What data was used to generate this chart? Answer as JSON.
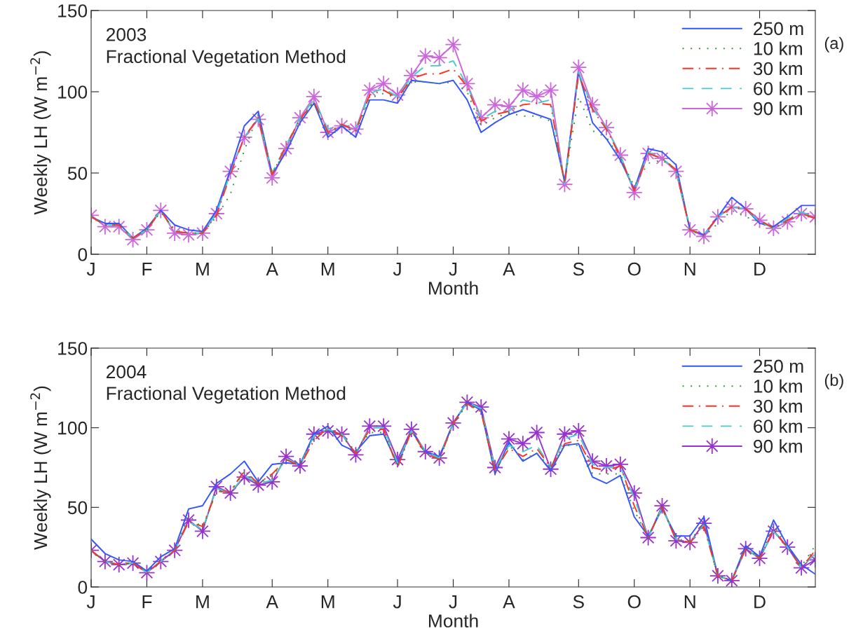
{
  "chart_data": [
    {
      "type": "line",
      "xlabel": "Month",
      "ylabel": "Weekly LH (W m$^{−2}$)",
      "annotations": [
        "2003",
        "Fractional Vegetation Method",
        "(a)"
      ],
      "categories": [
        "J",
        null,
        null,
        null,
        "F",
        null,
        null,
        null,
        "M",
        null,
        null,
        null,
        null,
        "A",
        null,
        null,
        null,
        "M",
        null,
        null,
        null,
        null,
        "J",
        null,
        null,
        null,
        "J",
        null,
        null,
        null,
        "A",
        null,
        null,
        null,
        null,
        "S",
        null,
        null,
        null,
        "O",
        null,
        null,
        null,
        "N",
        null,
        null,
        null,
        null,
        "D",
        null,
        null,
        null,
        null
      ],
      "ylim": [
        0,
        150
      ],
      "yticks": [
        0,
        50,
        100,
        150
      ],
      "grid": false,
      "legend": "top right",
      "series": [
        {
          "name": "250 m",
          "color": "#3355ff",
          "line_style": "solid",
          "marker": "none",
          "values": [
            23,
            19,
            19,
            10,
            16,
            27,
            18,
            15,
            14,
            27,
            52,
            79,
            88,
            49,
            63,
            81,
            93,
            72,
            79,
            72,
            95,
            95,
            93,
            107,
            106,
            105,
            107,
            95,
            75,
            81,
            86,
            89,
            86,
            83,
            45,
            112,
            81,
            71,
            58,
            40,
            65,
            63,
            55,
            15,
            12,
            23,
            35,
            28,
            19,
            17,
            23,
            30,
            30
          ]
        },
        {
          "name": "10 km",
          "color": "#339933",
          "line_style": "dotted",
          "marker": "none",
          "values": [
            23,
            18,
            18,
            10,
            15,
            26,
            15,
            13,
            13,
            23,
            37,
            64,
            86,
            50,
            64,
            82,
            94,
            74,
            79,
            75,
            96,
            99,
            96,
            106,
            106,
            105,
            106,
            100,
            79,
            84,
            87,
            85,
            85,
            82,
            45,
            97,
            76,
            72,
            59,
            42,
            56,
            58,
            52,
            15,
            11,
            19,
            27,
            23,
            20,
            16,
            20,
            25,
            23
          ]
        },
        {
          "name": "30 km",
          "color": "#ff3322",
          "line_style": "dashdot",
          "marker": "none",
          "values": [
            23,
            18,
            18,
            10,
            15,
            27,
            14,
            13,
            13,
            24,
            49,
            72,
            84,
            49,
            67,
            83,
            94,
            75,
            80,
            76,
            98,
            101,
            96,
            108,
            111,
            111,
            114,
            103,
            82,
            86,
            88,
            92,
            93,
            92,
            43,
            111,
            89,
            77,
            60,
            39,
            62,
            59,
            52,
            15,
            12,
            23,
            29,
            28,
            21,
            16,
            21,
            25,
            22
          ]
        },
        {
          "name": "60 km",
          "color": "#44cccc",
          "line_style": "dashed",
          "marker": "none",
          "values": [
            23,
            18,
            18,
            10,
            15,
            27,
            14,
            13,
            13,
            25,
            50,
            72,
            84,
            50,
            67,
            84,
            95,
            77,
            80,
            77,
            99,
            102,
            97,
            109,
            116,
            116,
            119,
            104,
            83,
            88,
            88,
            95,
            93,
            95,
            43,
            112,
            90,
            78,
            61,
            39,
            63,
            59,
            52,
            15,
            12,
            23,
            29,
            28,
            20,
            16,
            22,
            26,
            23
          ]
        },
        {
          "name": "90 km",
          "color": "#cc66dd",
          "line_style": "solid",
          "marker": "star",
          "values": [
            24,
            17,
            17,
            9,
            15,
            27,
            13,
            12,
            13,
            25,
            51,
            72,
            83,
            47,
            65,
            84,
            97,
            75,
            79,
            77,
            101,
            105,
            98,
            110,
            122,
            121,
            129,
            105,
            84,
            92,
            91,
            101,
            97,
            101,
            43,
            115,
            92,
            78,
            61,
            38,
            62,
            59,
            51,
            15,
            11,
            23,
            29,
            28,
            21,
            16,
            20,
            25,
            23
          ]
        }
      ]
    },
    {
      "type": "line",
      "xlabel": "Month",
      "ylabel": "Weekly LH (W m$^{−2}$)",
      "annotations": [
        "2004",
        "Fractional Vegetation Method",
        "(b)"
      ],
      "categories": [
        "J",
        null,
        null,
        null,
        "F",
        null,
        null,
        null,
        "M",
        null,
        null,
        null,
        null,
        "A",
        null,
        null,
        null,
        "M",
        null,
        null,
        null,
        null,
        "J",
        null,
        null,
        null,
        "J",
        null,
        null,
        null,
        "A",
        null,
        null,
        null,
        null,
        "S",
        null,
        null,
        null,
        "O",
        null,
        null,
        null,
        "N",
        null,
        null,
        null,
        null,
        "D",
        null,
        null,
        null,
        null
      ],
      "ylim": [
        0,
        150
      ],
      "yticks": [
        0,
        50,
        100,
        150
      ],
      "grid": false,
      "legend": "top right",
      "series": [
        {
          "name": "250 m",
          "color": "#3355ff",
          "line_style": "solid",
          "marker": "none",
          "values": [
            30,
            21,
            17,
            16,
            10,
            19,
            24,
            49,
            51,
            65,
            71,
            79,
            66,
            77,
            78,
            77,
            96,
            101,
            89,
            85,
            95,
            96,
            77,
            98,
            85,
            82,
            103,
            116,
            111,
            71,
            91,
            79,
            84,
            73,
            89,
            90,
            69,
            65,
            70,
            44,
            32,
            49,
            32,
            32,
            44,
            7,
            4,
            26,
            19,
            42,
            26,
            14,
            8
          ]
        },
        {
          "name": "10 km",
          "color": "#339933",
          "line_style": "dotted",
          "marker": "none",
          "values": [
            23,
            16,
            14,
            15,
            10,
            16,
            23,
            45,
            37,
            60,
            60,
            72,
            65,
            70,
            80,
            77,
            94,
            99,
            95,
            85,
            97,
            97,
            76,
            98,
            84,
            80,
            102,
            115,
            111,
            72,
            89,
            80,
            84,
            75,
            89,
            89,
            71,
            71,
            71,
            48,
            31,
            50,
            30,
            29,
            40,
            7,
            4,
            25,
            18,
            39,
            25,
            13,
            26
          ]
        },
        {
          "name": "30 km",
          "color": "#ff3322",
          "line_style": "dashdot",
          "marker": "none",
          "values": [
            23,
            16,
            14,
            15,
            9,
            16,
            23,
            41,
            38,
            60,
            60,
            73,
            65,
            71,
            80,
            76,
            92,
            100,
            95,
            84,
            99,
            99,
            75,
            98,
            84,
            80,
            103,
            115,
            110,
            73,
            87,
            82,
            87,
            75,
            90,
            92,
            75,
            73,
            76,
            51,
            31,
            50,
            30,
            28,
            38,
            7,
            4,
            24,
            18,
            36,
            25,
            12,
            23
          ]
        },
        {
          "name": "60 km",
          "color": "#44cccc",
          "line_style": "dashed",
          "marker": "none",
          "values": [
            23,
            16,
            14,
            15,
            9,
            16,
            23,
            41,
            36,
            62,
            59,
            70,
            65,
            67,
            81,
            76,
            95,
            99,
            96,
            84,
            100,
            100,
            78,
            98,
            85,
            81,
            103,
            116,
            112,
            74,
            89,
            85,
            89,
            75,
            93,
            96,
            77,
            75,
            75,
            56,
            31,
            50,
            30,
            28,
            39,
            7,
            4,
            24,
            18,
            35,
            25,
            12,
            21
          ]
        },
        {
          "name": "90 km",
          "color": "#9933cc",
          "line_style": "solid",
          "marker": "star",
          "values": [
            23,
            16,
            14,
            15,
            9,
            16,
            23,
            42,
            35,
            63,
            59,
            69,
            64,
            66,
            82,
            76,
            96,
            98,
            96,
            83,
            101,
            101,
            80,
            99,
            85,
            81,
            103,
            116,
            113,
            75,
            93,
            90,
            97,
            74,
            96,
            98,
            79,
            76,
            77,
            59,
            31,
            51,
            29,
            28,
            40,
            7,
            4,
            24,
            18,
            35,
            25,
            12,
            17
          ]
        }
      ]
    }
  ]
}
